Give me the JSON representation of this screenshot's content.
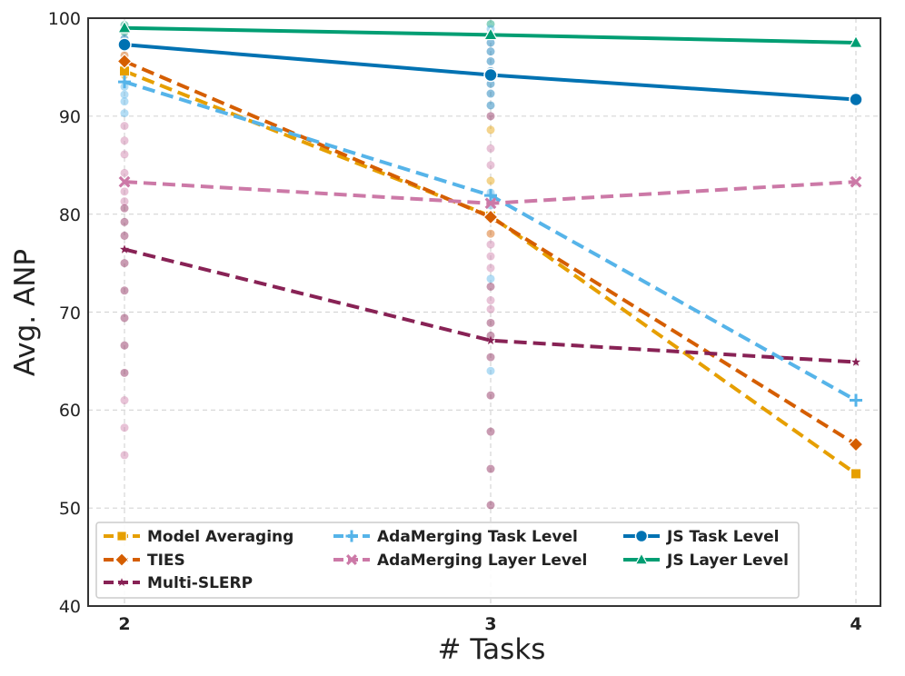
{
  "chart_data": {
    "type": "line",
    "title": "",
    "xlabel": "# Tasks",
    "ylabel": "Avg. ANP",
    "x": [
      2,
      3,
      4
    ],
    "x_ticks": [
      "2",
      "3",
      "4"
    ],
    "ylim": [
      40,
      100
    ],
    "y_ticks": [
      "40",
      "50",
      "60",
      "70",
      "80",
      "90",
      "100"
    ],
    "grid": true,
    "legend_position": "lower-left",
    "series": [
      {
        "name": "Model Averaging",
        "values": [
          94.6,
          79.8,
          53.5
        ],
        "color": "#E69F00",
        "dash": "dashed",
        "marker": "square"
      },
      {
        "name": "TIES",
        "values": [
          95.6,
          79.7,
          56.5
        ],
        "color": "#D55E00",
        "dash": "dashed",
        "marker": "diamond"
      },
      {
        "name": "Multi-SLERP",
        "values": [
          76.4,
          67.1,
          64.9
        ],
        "color": "#882255",
        "dash": "dashed",
        "marker": "star"
      },
      {
        "name": "AdaMerging Task Level",
        "values": [
          93.5,
          81.9,
          61.0
        ],
        "color": "#56B4E9",
        "dash": "dashed",
        "marker": "plus"
      },
      {
        "name": "AdaMerging Layer Level",
        "values": [
          83.3,
          81.1,
          83.3
        ],
        "color": "#CC79A7",
        "dash": "dashed",
        "marker": "x"
      },
      {
        "name": "JS Task Level",
        "values": [
          97.3,
          94.2,
          91.7
        ],
        "color": "#0072B2",
        "dash": "solid",
        "marker": "circle"
      },
      {
        "name": "JS Layer Level",
        "values": [
          99.0,
          98.3,
          97.5
        ],
        "color": "#009E73",
        "dash": "solid",
        "marker": "triangle"
      }
    ],
    "scatter_points": [
      {
        "x": 2,
        "values": [
          {
            "y": 99.3,
            "color": "#009E73"
          },
          {
            "y": 98.6,
            "color": "#009E73"
          },
          {
            "y": 97.9,
            "color": "#0072B2"
          },
          {
            "y": 97.0,
            "color": "#0072B2"
          },
          {
            "y": 96.2,
            "color": "#D55E00"
          },
          {
            "y": 95.1,
            "color": "#E69F00"
          },
          {
            "y": 94.2,
            "color": "#E69F00"
          },
          {
            "y": 93.0,
            "color": "#56B4E9"
          },
          {
            "y": 92.2,
            "color": "#56B4E9"
          },
          {
            "y": 91.5,
            "color": "#56B4E9"
          },
          {
            "y": 90.3,
            "color": "#56B4E9"
          },
          {
            "y": 89.0,
            "color": "#CC79A7"
          },
          {
            "y": 87.5,
            "color": "#CC79A7"
          },
          {
            "y": 86.1,
            "color": "#CC79A7"
          },
          {
            "y": 84.2,
            "color": "#CC79A7"
          },
          {
            "y": 82.3,
            "color": "#CC79A7"
          },
          {
            "y": 81.3,
            "color": "#CC79A7"
          },
          {
            "y": 80.6,
            "color": "#882255"
          },
          {
            "y": 79.2,
            "color": "#882255"
          },
          {
            "y": 77.8,
            "color": "#882255"
          },
          {
            "y": 75.0,
            "color": "#882255"
          },
          {
            "y": 72.2,
            "color": "#882255"
          },
          {
            "y": 69.4,
            "color": "#882255"
          },
          {
            "y": 66.6,
            "color": "#882255"
          },
          {
            "y": 63.8,
            "color": "#882255"
          },
          {
            "y": 61.0,
            "color": "#CC79A7"
          },
          {
            "y": 58.2,
            "color": "#CC79A7"
          },
          {
            "y": 55.4,
            "color": "#CC79A7"
          }
        ]
      },
      {
        "x": 3,
        "values": [
          {
            "y": 99.4,
            "color": "#009E73"
          },
          {
            "y": 98.9,
            "color": "#56B4E9"
          },
          {
            "y": 98.2,
            "color": "#56B4E9"
          },
          {
            "y": 97.5,
            "color": "#0072B2"
          },
          {
            "y": 96.6,
            "color": "#0072B2"
          },
          {
            "y": 95.6,
            "color": "#0072B2"
          },
          {
            "y": 94.6,
            "color": "#0072B2"
          },
          {
            "y": 93.3,
            "color": "#0072B2"
          },
          {
            "y": 92.3,
            "color": "#0072B2"
          },
          {
            "y": 91.1,
            "color": "#0072B2"
          },
          {
            "y": 90.0,
            "color": "#882255"
          },
          {
            "y": 88.6,
            "color": "#E69F00"
          },
          {
            "y": 86.7,
            "color": "#CC79A7"
          },
          {
            "y": 85.0,
            "color": "#CC79A7"
          },
          {
            "y": 83.4,
            "color": "#E69F00"
          },
          {
            "y": 82.2,
            "color": "#56B4E9"
          },
          {
            "y": 80.9,
            "color": "#56B4E9"
          },
          {
            "y": 79.5,
            "color": "#D55E00"
          },
          {
            "y": 78.0,
            "color": "#D55E00"
          },
          {
            "y": 76.9,
            "color": "#CC79A7"
          },
          {
            "y": 75.7,
            "color": "#CC79A7"
          },
          {
            "y": 74.5,
            "color": "#CC79A7"
          },
          {
            "y": 73.4,
            "color": "#56B4E9"
          },
          {
            "y": 72.6,
            "color": "#882255"
          },
          {
            "y": 71.2,
            "color": "#CC79A7"
          },
          {
            "y": 70.3,
            "color": "#CC79A7"
          },
          {
            "y": 68.9,
            "color": "#882255"
          },
          {
            "y": 67.6,
            "color": "#882255"
          },
          {
            "y": 65.4,
            "color": "#882255"
          },
          {
            "y": 64.0,
            "color": "#56B4E9"
          },
          {
            "y": 61.5,
            "color": "#882255"
          },
          {
            "y": 57.8,
            "color": "#882255"
          },
          {
            "y": 54.0,
            "color": "#882255"
          },
          {
            "y": 50.3,
            "color": "#882255"
          }
        ]
      }
    ]
  }
}
